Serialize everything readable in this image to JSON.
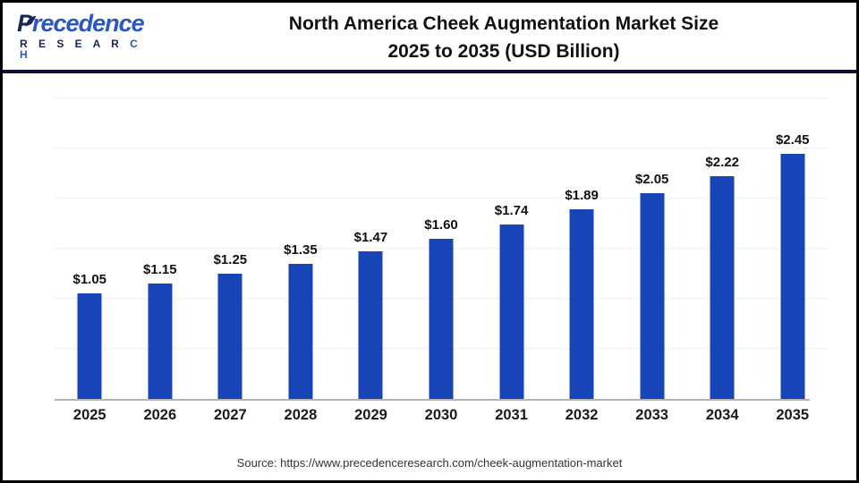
{
  "brand": {
    "name": "Precedence",
    "subname": "RESEARCH",
    "leaf_icon": "leaf-icon",
    "navy": "#17255f",
    "blue": "#2b57c4"
  },
  "header": {
    "title_line1": "North America Cheek Augmentation Market Size",
    "title_line2": "2025 to 2035 (USD Billion)"
  },
  "chart_data": {
    "type": "bar",
    "title": "North America Cheek Augmentation Market Size 2025 to 2035 (USD Billion)",
    "categories": [
      "2025",
      "2026",
      "2027",
      "2028",
      "2029",
      "2030",
      "2031",
      "2032",
      "2033",
      "2034",
      "2035"
    ],
    "values": [
      1.05,
      1.15,
      1.25,
      1.35,
      1.47,
      1.6,
      1.74,
      1.89,
      2.05,
      2.22,
      2.45
    ],
    "value_labels": [
      "$1.05",
      "$1.15",
      "$1.25",
      "$1.35",
      "$1.47",
      "$1.60",
      "$1.74",
      "$1.89",
      "$2.05",
      "$2.22",
      "$2.45"
    ],
    "xlabel": "",
    "ylabel": "",
    "ylim": [
      0,
      3.0
    ],
    "gridline_step": 0.5,
    "grid": true,
    "legend": false,
    "y_axis_labels_visible": false,
    "bar_color": "#1745b8",
    "gridline_color": "#efefef",
    "baseline_color": "#b3b3b3"
  },
  "footer": {
    "source": "Source: https://www.precedenceresearch.com/cheek-augmentation-market"
  }
}
